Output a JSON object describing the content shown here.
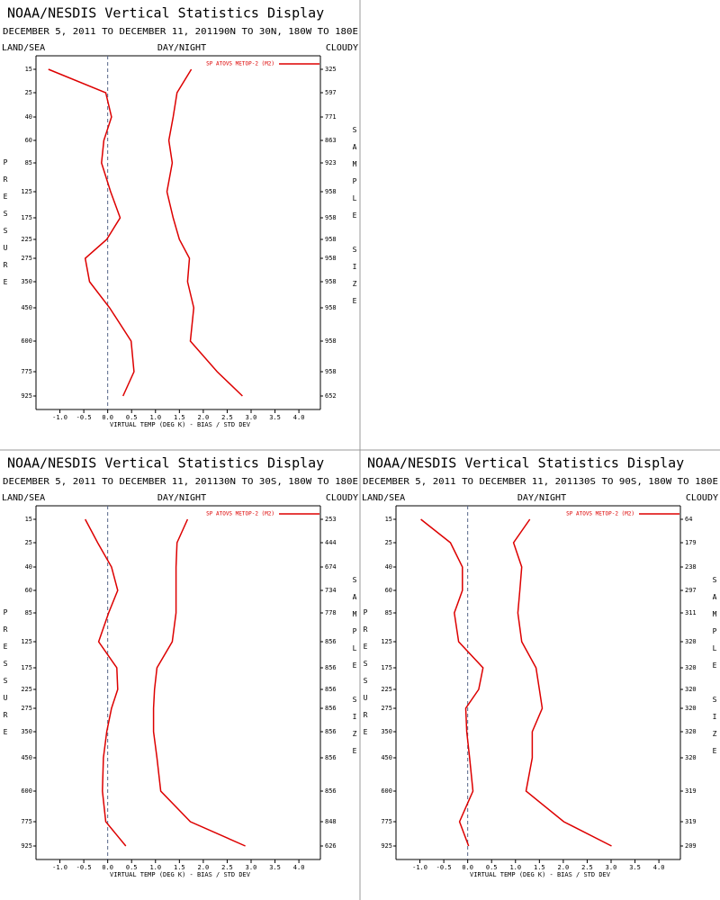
{
  "chart_data": [
    {
      "type": "line",
      "title": "NOAA/NESDIS Vertical Statistics Display",
      "subtitle": "DECEMBER 5, 2011 TO DECEMBER 11, 201190N TO 30N, 180W TO 180E",
      "left_label": "LAND/SEA",
      "center_label": "DAY/NIGHT",
      "right_label": "CLOUDY",
      "y_label": "PRESSURE",
      "y2_label": "SAMPLE SIZE",
      "x_label": "VIRTUAL TEMP (DEG K) - BIAS / STD DEV",
      "categories": [
        "15",
        "25",
        "40",
        "60",
        "85",
        "125",
        "175",
        "225",
        "275",
        "350",
        "450",
        "600",
        "775",
        "925"
      ],
      "xlim": [
        -1.5,
        4.45
      ],
      "xticks": [
        {
          "value": -1,
          "label": "-1.0"
        },
        -0.5,
        {
          "value": 0,
          "label": "0.0"
        },
        0.5,
        {
          "value": 1,
          "label": "1.0"
        },
        1.5,
        {
          "value": 2,
          "label": "2.0"
        },
        2.5,
        {
          "value": 3,
          "label": "3.0"
        },
        3.5,
        {
          "value": 4,
          "label": "4.0"
        }
      ],
      "series": [
        {
          "name": "SP ATOVS METOP-2 (M2)",
          "color": "#dd0000",
          "values": [
            -1.24,
            -0.04,
            0.08,
            -0.08,
            -0.13,
            0.06,
            0.26,
            -0.02,
            -0.47,
            -0.38,
            0.04,
            0.49,
            0.55,
            0.32
          ],
          "std_dev": [
            1.75,
            1.45,
            1.37,
            1.28,
            1.35,
            1.24,
            1.37,
            1.5,
            1.71,
            1.67,
            1.8,
            1.73,
            2.29,
            2.82
          ]
        }
      ],
      "sample_size": [
        325,
        597,
        771,
        863,
        923,
        958,
        958,
        958,
        958,
        958,
        958,
        958,
        958,
        652
      ]
    },
    {
      "type": "line",
      "title": "NOAA/NESDIS Vertical Statistics Display",
      "subtitle": "DECEMBER 5, 2011 TO DECEMBER 11, 201130N TO 30S, 180W TO 180E",
      "left_label": "LAND/SEA",
      "center_label": "DAY/NIGHT",
      "right_label": "CLOUDY",
      "y_label": "PRESSURE",
      "y2_label": "SAMPLE SIZE",
      "x_label": "VIRTUAL TEMP (DEG K) - BIAS / STD DEV",
      "categories": [
        "15",
        "25",
        "40",
        "60",
        "85",
        "125",
        "175",
        "225",
        "275",
        "350",
        "450",
        "600",
        "775",
        "925"
      ],
      "xlim": [
        -1.5,
        4.45
      ],
      "xticks": [
        {
          "value": -1,
          "label": "-1.0"
        },
        -0.5,
        {
          "value": 0,
          "label": "0.0"
        },
        0.5,
        {
          "value": 1,
          "label": "1.0"
        },
        1.5,
        {
          "value": 2,
          "label": "2.0"
        },
        2.5,
        {
          "value": 3,
          "label": "3.0"
        },
        3.5,
        {
          "value": 4,
          "label": "4.0"
        }
      ],
      "series": [
        {
          "name": "SP ATOVS METOP-2 (M2)",
          "color": "#dd0000",
          "values": [
            -0.47,
            -0.21,
            0.08,
            0.21,
            0.02,
            -0.19,
            0.19,
            0.21,
            0.08,
            -0.02,
            -0.09,
            -0.11,
            -0.04,
            0.38
          ],
          "std_dev": [
            1.67,
            1.45,
            1.43,
            1.43,
            1.43,
            1.35,
            1.03,
            0.98,
            0.96,
            0.96,
            1.03,
            1.11,
            1.73,
            2.88
          ]
        }
      ],
      "sample_size": [
        253,
        444,
        674,
        734,
        778,
        856,
        856,
        856,
        856,
        856,
        856,
        856,
        848,
        626
      ]
    },
    {
      "type": "line",
      "title": "NOAA/NESDIS Vertical Statistics Display",
      "subtitle": "DECEMBER 5, 2011 TO DECEMBER 11, 201130S TO 90S, 180W TO 180E",
      "left_label": "LAND/SEA",
      "center_label": "DAY/NIGHT",
      "right_label": "CLOUDY",
      "y_label": "PRESSURE",
      "y2_label": "SAMPLE SIZE",
      "x_label": "VIRTUAL TEMP (DEG K) - BIAS / STD DEV",
      "categories": [
        "15",
        "25",
        "40",
        "60",
        "85",
        "125",
        "175",
        "225",
        "275",
        "350",
        "450",
        "600",
        "775",
        "925"
      ],
      "xlim": [
        -1.5,
        4.45
      ],
      "xticks": [
        {
          "value": -1,
          "label": "-1.0"
        },
        -0.5,
        {
          "value": 0,
          "label": "0.0"
        },
        0.5,
        {
          "value": 1,
          "label": "1.0"
        },
        1.5,
        {
          "value": 2,
          "label": "2.0"
        },
        2.5,
        {
          "value": 3,
          "label": "3.0"
        },
        3.5,
        {
          "value": 4,
          "label": "4.0"
        }
      ],
      "series": [
        {
          "name": "SP ATOVS METOP-2 (M2)",
          "color": "#dd0000",
          "values": [
            -0.98,
            -0.36,
            -0.11,
            -0.11,
            -0.28,
            -0.19,
            0.32,
            0.23,
            -0.04,
            -0.02,
            0.04,
            0.11,
            -0.17,
            0.02
          ],
          "std_dev": [
            1.3,
            0.96,
            1.13,
            1.09,
            1.05,
            1.13,
            1.43,
            1.5,
            1.56,
            1.35,
            1.35,
            1.22,
            2.01,
            3.01
          ]
        }
      ],
      "sample_size": [
        64,
        179,
        238,
        297,
        311,
        320,
        320,
        320,
        320,
        320,
        320,
        319,
        319,
        209
      ]
    }
  ]
}
